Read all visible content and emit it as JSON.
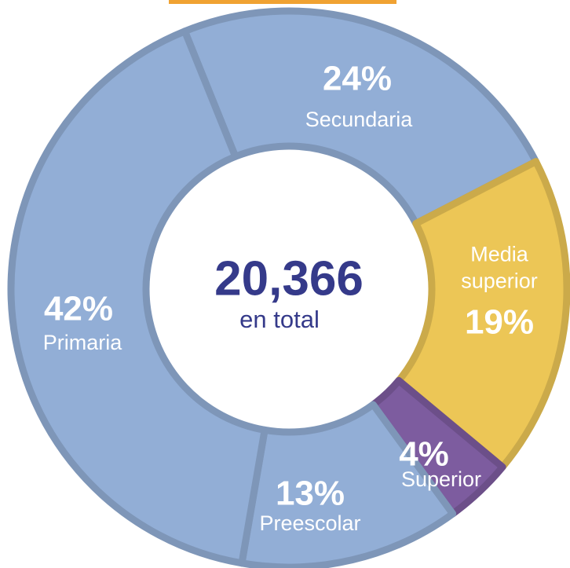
{
  "chart_data": {
    "type": "pie",
    "center_value": "20,366",
    "center_label": "en total",
    "categories": [
      "Secundaria",
      "Media superior",
      "Superior",
      "Preescolar",
      "Primaria"
    ],
    "values": [
      24,
      19,
      4,
      13,
      42
    ],
    "value_labels": [
      "24%",
      "19%",
      "4%",
      "13%",
      "42%"
    ],
    "colors": [
      "#92aed6",
      "#ecc656",
      "#7d5c9f",
      "#92aed6",
      "#92aed6"
    ]
  }
}
